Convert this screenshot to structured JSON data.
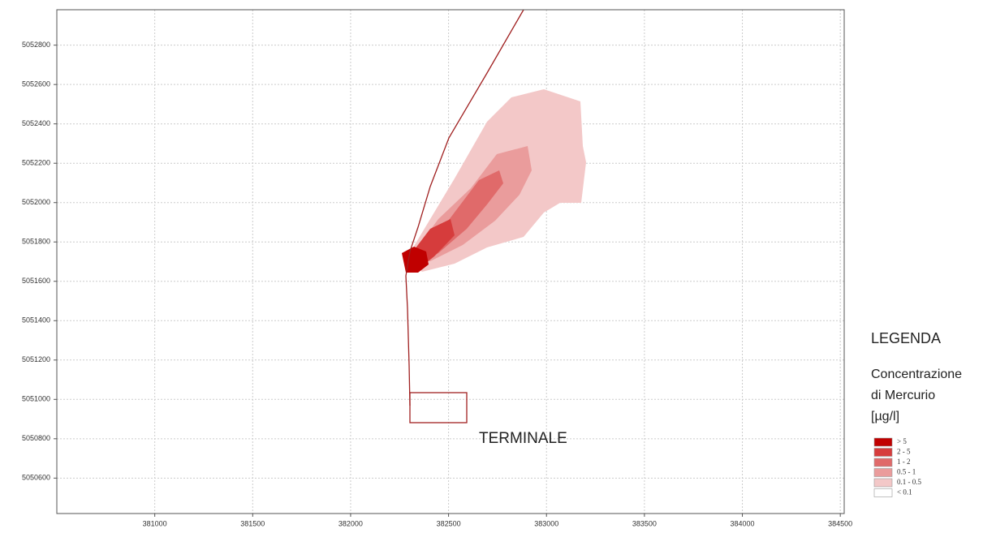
{
  "chart_data": {
    "type": "map",
    "xlim": [
      380500,
      384520
    ],
    "ylim": [
      5050420,
      5052980
    ],
    "xticks": [
      381000,
      381500,
      382000,
      382500,
      383000,
      383500,
      384000,
      384500
    ],
    "yticks": [
      5050600,
      5050800,
      5051000,
      5051200,
      5051400,
      5051600,
      5051800,
      5052000,
      5052200,
      5052400,
      5052600,
      5052800
    ],
    "grid": true,
    "annotation": "TERMINALE",
    "legend": {
      "title": "LEGENDA",
      "subtitle": [
        "Concentrazione",
        "di Mercurio",
        "[µg/l]"
      ],
      "items": [
        {
          "label": "> 5",
          "color": "#c00000"
        },
        {
          "label": "2 - 5",
          "color": "#d63c3c"
        },
        {
          "label": "1 - 2",
          "color": "#e06a6a"
        },
        {
          "label": "0.5 - 1",
          "color": "#ea9c9c"
        },
        {
          "label": "0.1 - 0.5",
          "color": "#f3c8c8"
        },
        {
          "label": "< 0.1",
          "color": "#ffffff"
        }
      ]
    }
  }
}
